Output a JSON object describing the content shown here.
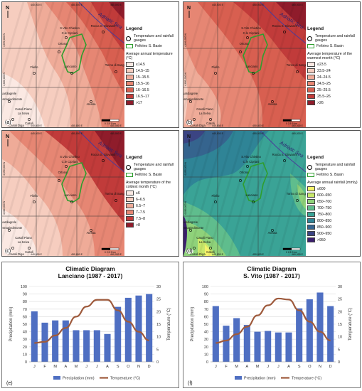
{
  "maps": [
    {
      "id": "a",
      "label": "(a)",
      "legend_title": "Legend",
      "gauge_label": "Temperature and rainfall gauges",
      "basin_label": "Feltrino S. Basin",
      "classes_title": "Average annual temperature (°C)",
      "classes": [
        {
          "label": "≤14.5",
          "color": "#fbe9e3"
        },
        {
          "label": "14.5–15",
          "color": "#f6cdbf"
        },
        {
          "label": "15–15.5",
          "color": "#efab98"
        },
        {
          "label": "15.5–16",
          "color": "#e68673"
        },
        {
          "label": "16–16.5",
          "color": "#d85f50"
        },
        {
          "label": "16.5–17",
          "color": "#c13b3a"
        },
        {
          "label": ">17",
          "color": "#8f1c2b"
        }
      ]
    },
    {
      "id": "b",
      "label": "(b)",
      "legend_title": "Legend",
      "gauge_label": "Temperature and rainfall gauges",
      "basin_label": "Feltrino S. Basin",
      "classes_title": "Average temperature of the warmest month (°C)",
      "classes": [
        {
          "label": "≤23.5",
          "color": "#fbe9e3"
        },
        {
          "label": "23.5–24",
          "color": "#f6cdbf"
        },
        {
          "label": "24–24.5",
          "color": "#efab98"
        },
        {
          "label": "24.5–25",
          "color": "#e68673"
        },
        {
          "label": "25–25.5",
          "color": "#d85f50"
        },
        {
          "label": "25.5–26",
          "color": "#c13b3a"
        },
        {
          "label": ">26",
          "color": "#8f1c2b"
        }
      ]
    },
    {
      "id": "c",
      "label": "(c)",
      "legend_title": "Legend",
      "gauge_label": "Temperature and rainfall gauges",
      "basin_label": "Feltrino S. Basin",
      "classes_title": "Average temperature of the coldest month (°C)",
      "classes": [
        {
          "label": "≤6",
          "color": "#fbe9e3"
        },
        {
          "label": "6–6.5",
          "color": "#f6cdbf"
        },
        {
          "label": "6.5–7",
          "color": "#efab98"
        },
        {
          "label": "7–7.5",
          "color": "#e68673"
        },
        {
          "label": "7.5–8",
          "color": "#c13b3a"
        },
        {
          "label": ">8",
          "color": "#8f1c2b"
        }
      ]
    },
    {
      "id": "d",
      "label": "(d)",
      "legend_title": "Legend",
      "gauge_label": "Temperature and rainfall gauges",
      "basin_label": "Feltrino S. Basin",
      "classes_title": "Average annual rainfall (mm/y)",
      "classes": [
        {
          "label": "≤600",
          "color": "#f6f26a"
        },
        {
          "label": "600–650",
          "color": "#c8e86b"
        },
        {
          "label": "650–700",
          "color": "#8fd27a"
        },
        {
          "label": "700–750",
          "color": "#5fbd8d"
        },
        {
          "label": "750–800",
          "color": "#3aa396"
        },
        {
          "label": "800–850",
          "color": "#2f8496"
        },
        {
          "label": "850–900",
          "color": "#35648e"
        },
        {
          "label": "900–950",
          "color": "#3b4483"
        },
        {
          "label": ">950",
          "color": "#3b1f6e"
        }
      ]
    }
  ],
  "map_labels": {
    "sea": "Adriatic Sea",
    "places": [
      "S.Vito Chietino",
      "C.le Cipriani",
      "Rocca S. Giovanni",
      "Ortona",
      "Lanciano",
      "Fliello",
      "Torino di Sangro",
      "Guardiagrele",
      "Pennapiedimonte",
      "Casoli Piano",
      "La Selva",
      "Casoli",
      "Atessa",
      "Casoli Diga"
    ],
    "north": "N",
    "coords_top": [
      "440,000 E",
      "450,000 E",
      "460,000 E"
    ],
    "coords_bottom": [
      "440,000 E",
      "450,000 E",
      "460,000 E"
    ],
    "coords_left": [
      "4,690,000 N",
      "4,680,000 N"
    ],
    "scale": "0  2.5  5 km"
  },
  "charts": [
    {
      "id": "e",
      "panel_label": "(e)",
      "chart_data": {
        "type": "bar+line",
        "title": "Climatic Diagram",
        "subtitle": "Lanciano (1987 - 2017)",
        "categories": [
          "J",
          "F",
          "M",
          "A",
          "M",
          "J",
          "J",
          "A",
          "S",
          "O",
          "N",
          "D"
        ],
        "series": [
          {
            "name": "Precipitation (mm)",
            "type": "bar",
            "axis": "left",
            "color": "#4f6fc2",
            "values": [
              67,
              52,
              55,
              55,
              42,
              42,
              42,
              37,
              73,
              85,
              88,
              90
            ]
          },
          {
            "name": "Temperature (°C)",
            "type": "line",
            "axis": "right",
            "color": "#9e5a3c",
            "values": [
              7.5,
              8,
              10.5,
              13.5,
              18,
              22,
              24.7,
              24.7,
              20.5,
              16,
              12,
              8.5
            ]
          }
        ],
        "ylabel": "Precipitation (mm)",
        "y2label": "Temperature (°C)",
        "ylim": [
          0,
          100
        ],
        "y2lim": [
          0,
          30
        ],
        "yticks": [
          0,
          10,
          20,
          30,
          40,
          50,
          60,
          70,
          80,
          90,
          100
        ],
        "y2ticks": [
          0,
          5,
          10,
          15,
          20,
          25,
          30
        ],
        "legend_position": "bottom"
      }
    },
    {
      "id": "f",
      "panel_label": "(f)",
      "chart_data": {
        "type": "bar+line",
        "title": "Climatic Diagram",
        "subtitle": "S. Vito (1987 - 2017)",
        "categories": [
          "J",
          "F",
          "M",
          "A",
          "M",
          "J",
          "J",
          "A",
          "S",
          "O",
          "N",
          "D"
        ],
        "series": [
          {
            "name": "Precipitation (mm)",
            "type": "bar",
            "axis": "left",
            "color": "#4f6fc2",
            "values": [
              74,
              48,
              58,
              49,
              40,
              41,
              39,
              39,
              71,
              83,
              92,
              74
            ]
          },
          {
            "name": "Temperature (°C)",
            "type": "line",
            "axis": "right",
            "color": "#9e5a3c",
            "values": [
              7.5,
              8.5,
              11,
              14,
              18.5,
              22.5,
              25.2,
              24.8,
              20.5,
              16,
              12,
              8.5
            ]
          }
        ],
        "ylabel": "Precipitation (mm)",
        "y2label": "Temperature (°C)",
        "ylim": [
          0,
          100
        ],
        "y2lim": [
          0,
          30
        ],
        "yticks": [
          0,
          10,
          20,
          30,
          40,
          50,
          60,
          70,
          80,
          90,
          100
        ],
        "y2ticks": [
          0,
          5,
          10,
          15,
          20,
          25,
          30
        ],
        "legend_position": "bottom"
      }
    }
  ]
}
